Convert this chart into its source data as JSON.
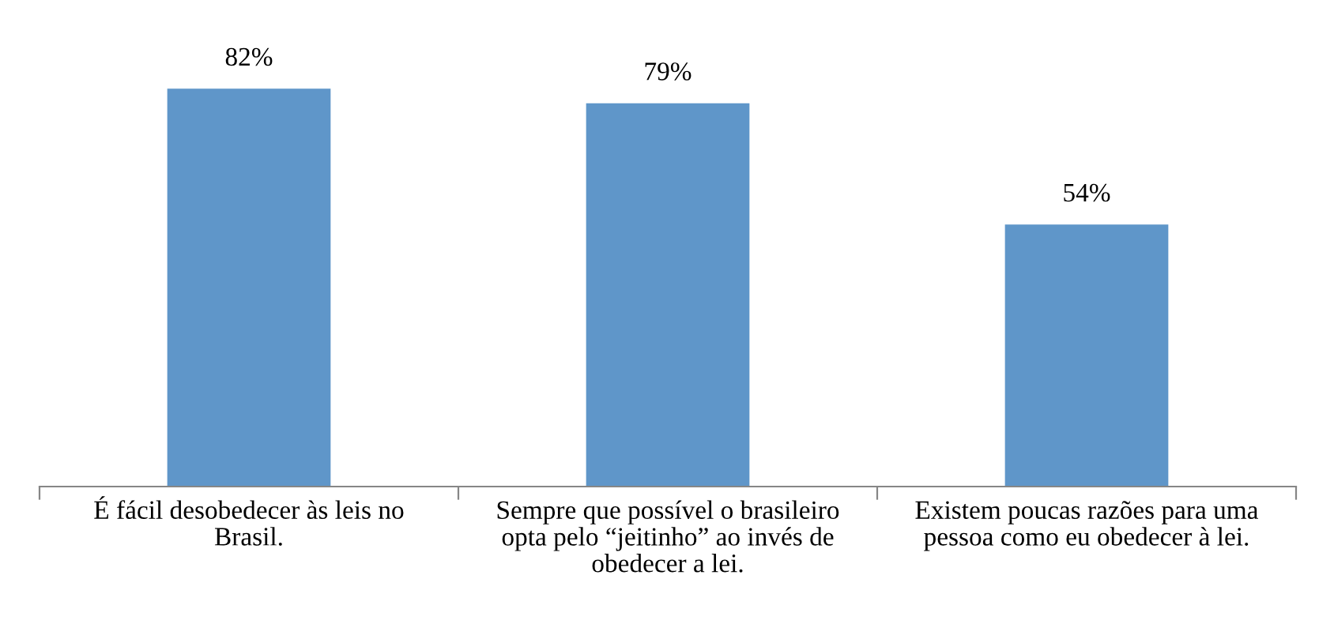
{
  "chart_data": {
    "type": "bar",
    "categories": [
      "É fácil desobedecer às leis no Brasil.",
      "Sempre que possível o brasileiro opta pelo “jeitinho” ao invés de obedecer a lei.",
      "Existem poucas razões para uma pessoa como eu obedecer à lei."
    ],
    "values": [
      82,
      79,
      54
    ],
    "value_labels": [
      "82%",
      "79%",
      "54%"
    ],
    "color": "#5f96c9",
    "tick_labels": "x",
    "grid": false,
    "legend": false
  }
}
